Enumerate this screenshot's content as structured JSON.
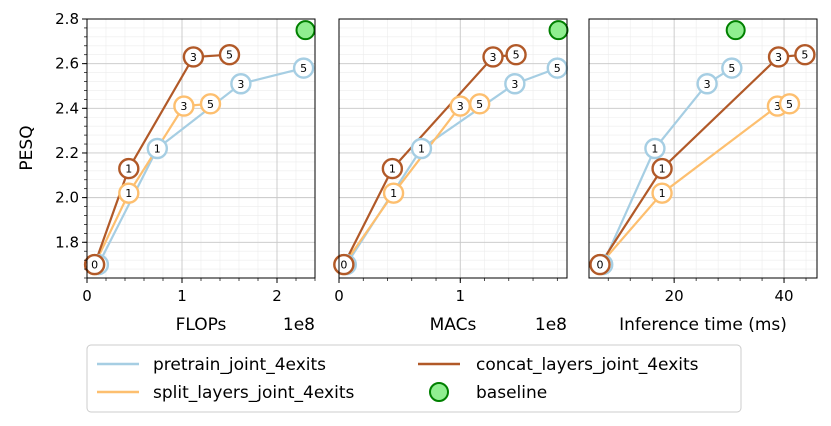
{
  "chart_data": {
    "type": "line",
    "ylabel": "PESQ",
    "ylim": [
      1.64,
      2.8
    ],
    "yticks": [
      "1.8",
      "2.0",
      "2.2",
      "2.4",
      "2.6",
      "2.8"
    ],
    "yticks_values": [
      1.8,
      2.0,
      2.2,
      2.4,
      2.6,
      2.8
    ],
    "grid": true,
    "legend": {
      "placement": "bottom",
      "entries": [
        {
          "name": "pretrain_joint_4exits",
          "color": "#a6cee3"
        },
        {
          "name": "concat_layers_joint_4exits",
          "color": "#b15928"
        },
        {
          "name": "split_layers_joint_4exits",
          "color": "#fdbf6f"
        },
        {
          "name": "baseline",
          "color": "#90ee90",
          "edge": "#008000"
        }
      ]
    },
    "panels": [
      {
        "xlabel": "FLOPs",
        "offset_text": "1e8",
        "xlim": [
          0,
          2.4
        ],
        "xticks": [
          "0",
          "1",
          "2"
        ],
        "xticks_values": [
          0,
          1,
          2
        ],
        "series": [
          {
            "name": "pretrain_joint_4exits",
            "color": "#a6cee3",
            "x": [
              0.12,
              0.74,
              1.62,
              2.28
            ],
            "y": [
              1.7,
              2.22,
              2.51,
              2.58
            ],
            "labels": [
              "0",
              "1",
              "3",
              "5"
            ]
          },
          {
            "name": "split_layers_joint_4exits",
            "color": "#fdbf6f",
            "x": [
              0.08,
              0.44,
              1.02,
              1.3
            ],
            "y": [
              1.7,
              2.02,
              2.41,
              2.42
            ],
            "labels": [
              "0",
              "1",
              "3",
              "5"
            ]
          },
          {
            "name": "concat_layers_joint_4exits",
            "color": "#b15928",
            "x": [
              0.08,
              0.44,
              1.12,
              1.5
            ],
            "y": [
              1.7,
              2.13,
              2.63,
              2.64
            ],
            "labels": [
              "0",
              "1",
              "3",
              "5"
            ]
          }
        ],
        "baseline": {
          "x": 2.3,
          "y": 2.75
        }
      },
      {
        "xlabel": "MACs",
        "offset_text": "1e8",
        "xlim": [
          0,
          1.88
        ],
        "xticks": [
          "0",
          "1"
        ],
        "xticks_values": [
          0,
          1
        ],
        "series": [
          {
            "name": "pretrain_joint_4exits",
            "color": "#a6cee3",
            "x": [
              0.06,
              0.68,
              1.45,
              1.8
            ],
            "y": [
              1.7,
              2.22,
              2.51,
              2.58
            ],
            "labels": [
              "0",
              "1",
              "3",
              "5"
            ]
          },
          {
            "name": "split_layers_joint_4exits",
            "color": "#fdbf6f",
            "x": [
              0.04,
              0.45,
              1.0,
              1.16
            ],
            "y": [
              1.7,
              2.02,
              2.41,
              2.42
            ],
            "labels": [
              "0",
              "1",
              "3",
              "5"
            ]
          },
          {
            "name": "concat_layers_joint_4exits",
            "color": "#b15928",
            "x": [
              0.04,
              0.44,
              1.27,
              1.46
            ],
            "y": [
              1.7,
              2.13,
              2.63,
              2.64
            ],
            "labels": [
              "0",
              "1",
              "3",
              "5"
            ]
          }
        ],
        "baseline": {
          "x": 1.81,
          "y": 2.75
        }
      },
      {
        "xlabel": "Inference time (ms)",
        "offset_text": "",
        "xlim": [
          4.5,
          46
        ],
        "xticks": [
          "20",
          "40"
        ],
        "xticks_values": [
          20,
          40
        ],
        "series": [
          {
            "name": "pretrain_joint_4exits",
            "color": "#a6cee3",
            "x": [
              7.0,
              16.5,
              26.0,
              30.5
            ],
            "y": [
              1.7,
              2.22,
              2.51,
              2.58
            ],
            "labels": [
              "0",
              "1",
              "3",
              "5"
            ]
          },
          {
            "name": "split_layers_joint_4exits",
            "color": "#fdbf6f",
            "x": [
              6.5,
              17.8,
              38.8,
              41.0
            ],
            "y": [
              1.7,
              2.02,
              2.41,
              2.42
            ],
            "labels": [
              "0",
              "1",
              "3",
              "5"
            ]
          },
          {
            "name": "concat_layers_joint_4exits",
            "color": "#b15928",
            "x": [
              6.5,
              17.8,
              39.0,
              43.8
            ],
            "y": [
              1.7,
              2.13,
              2.63,
              2.64
            ],
            "labels": [
              "0",
              "1",
              "3",
              "5"
            ]
          }
        ],
        "baseline": {
          "x": 31.2,
          "y": 2.75
        }
      }
    ]
  }
}
